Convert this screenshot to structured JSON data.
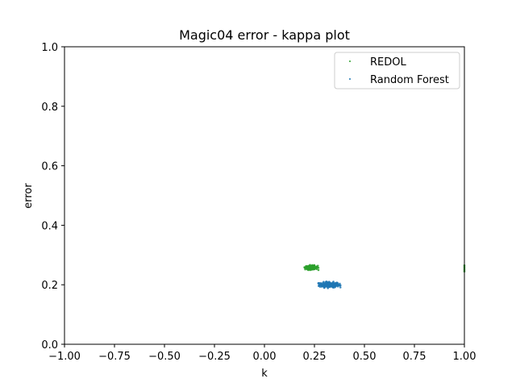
{
  "chart_data": {
    "type": "scatter",
    "title": "Magic04 error - kappa plot",
    "xlabel": "k",
    "ylabel": "error",
    "xlim": [
      -1.0,
      1.0
    ],
    "ylim": [
      0.0,
      1.0
    ],
    "xticks": [
      "−1.00",
      "−0.75",
      "−0.50",
      "−0.25",
      "0.00",
      "0.25",
      "0.50",
      "0.75",
      "1.00"
    ],
    "yticks": [
      "0.0",
      "0.2",
      "0.4",
      "0.6",
      "0.8",
      "1.0"
    ],
    "grid": false,
    "legend_position": "top-right",
    "series": [
      {
        "name": "REDOL",
        "color": "#2ca02c",
        "cluster": {
          "k_center": 0.235,
          "k_spread": 0.035,
          "error_center": 0.258,
          "error_spread": 0.006,
          "count": 160
        },
        "points": [
          [
            1.0,
            0.245
          ],
          [
            1.0,
            0.25
          ],
          [
            1.0,
            0.255
          ],
          [
            1.0,
            0.26
          ],
          [
            1.0,
            0.265
          ]
        ]
      },
      {
        "name": "Random Forest",
        "color": "#1f77b4",
        "cluster": {
          "k_center": 0.325,
          "k_spread": 0.055,
          "error_center": 0.2,
          "error_spread": 0.008,
          "count": 220
        },
        "points": []
      }
    ]
  }
}
